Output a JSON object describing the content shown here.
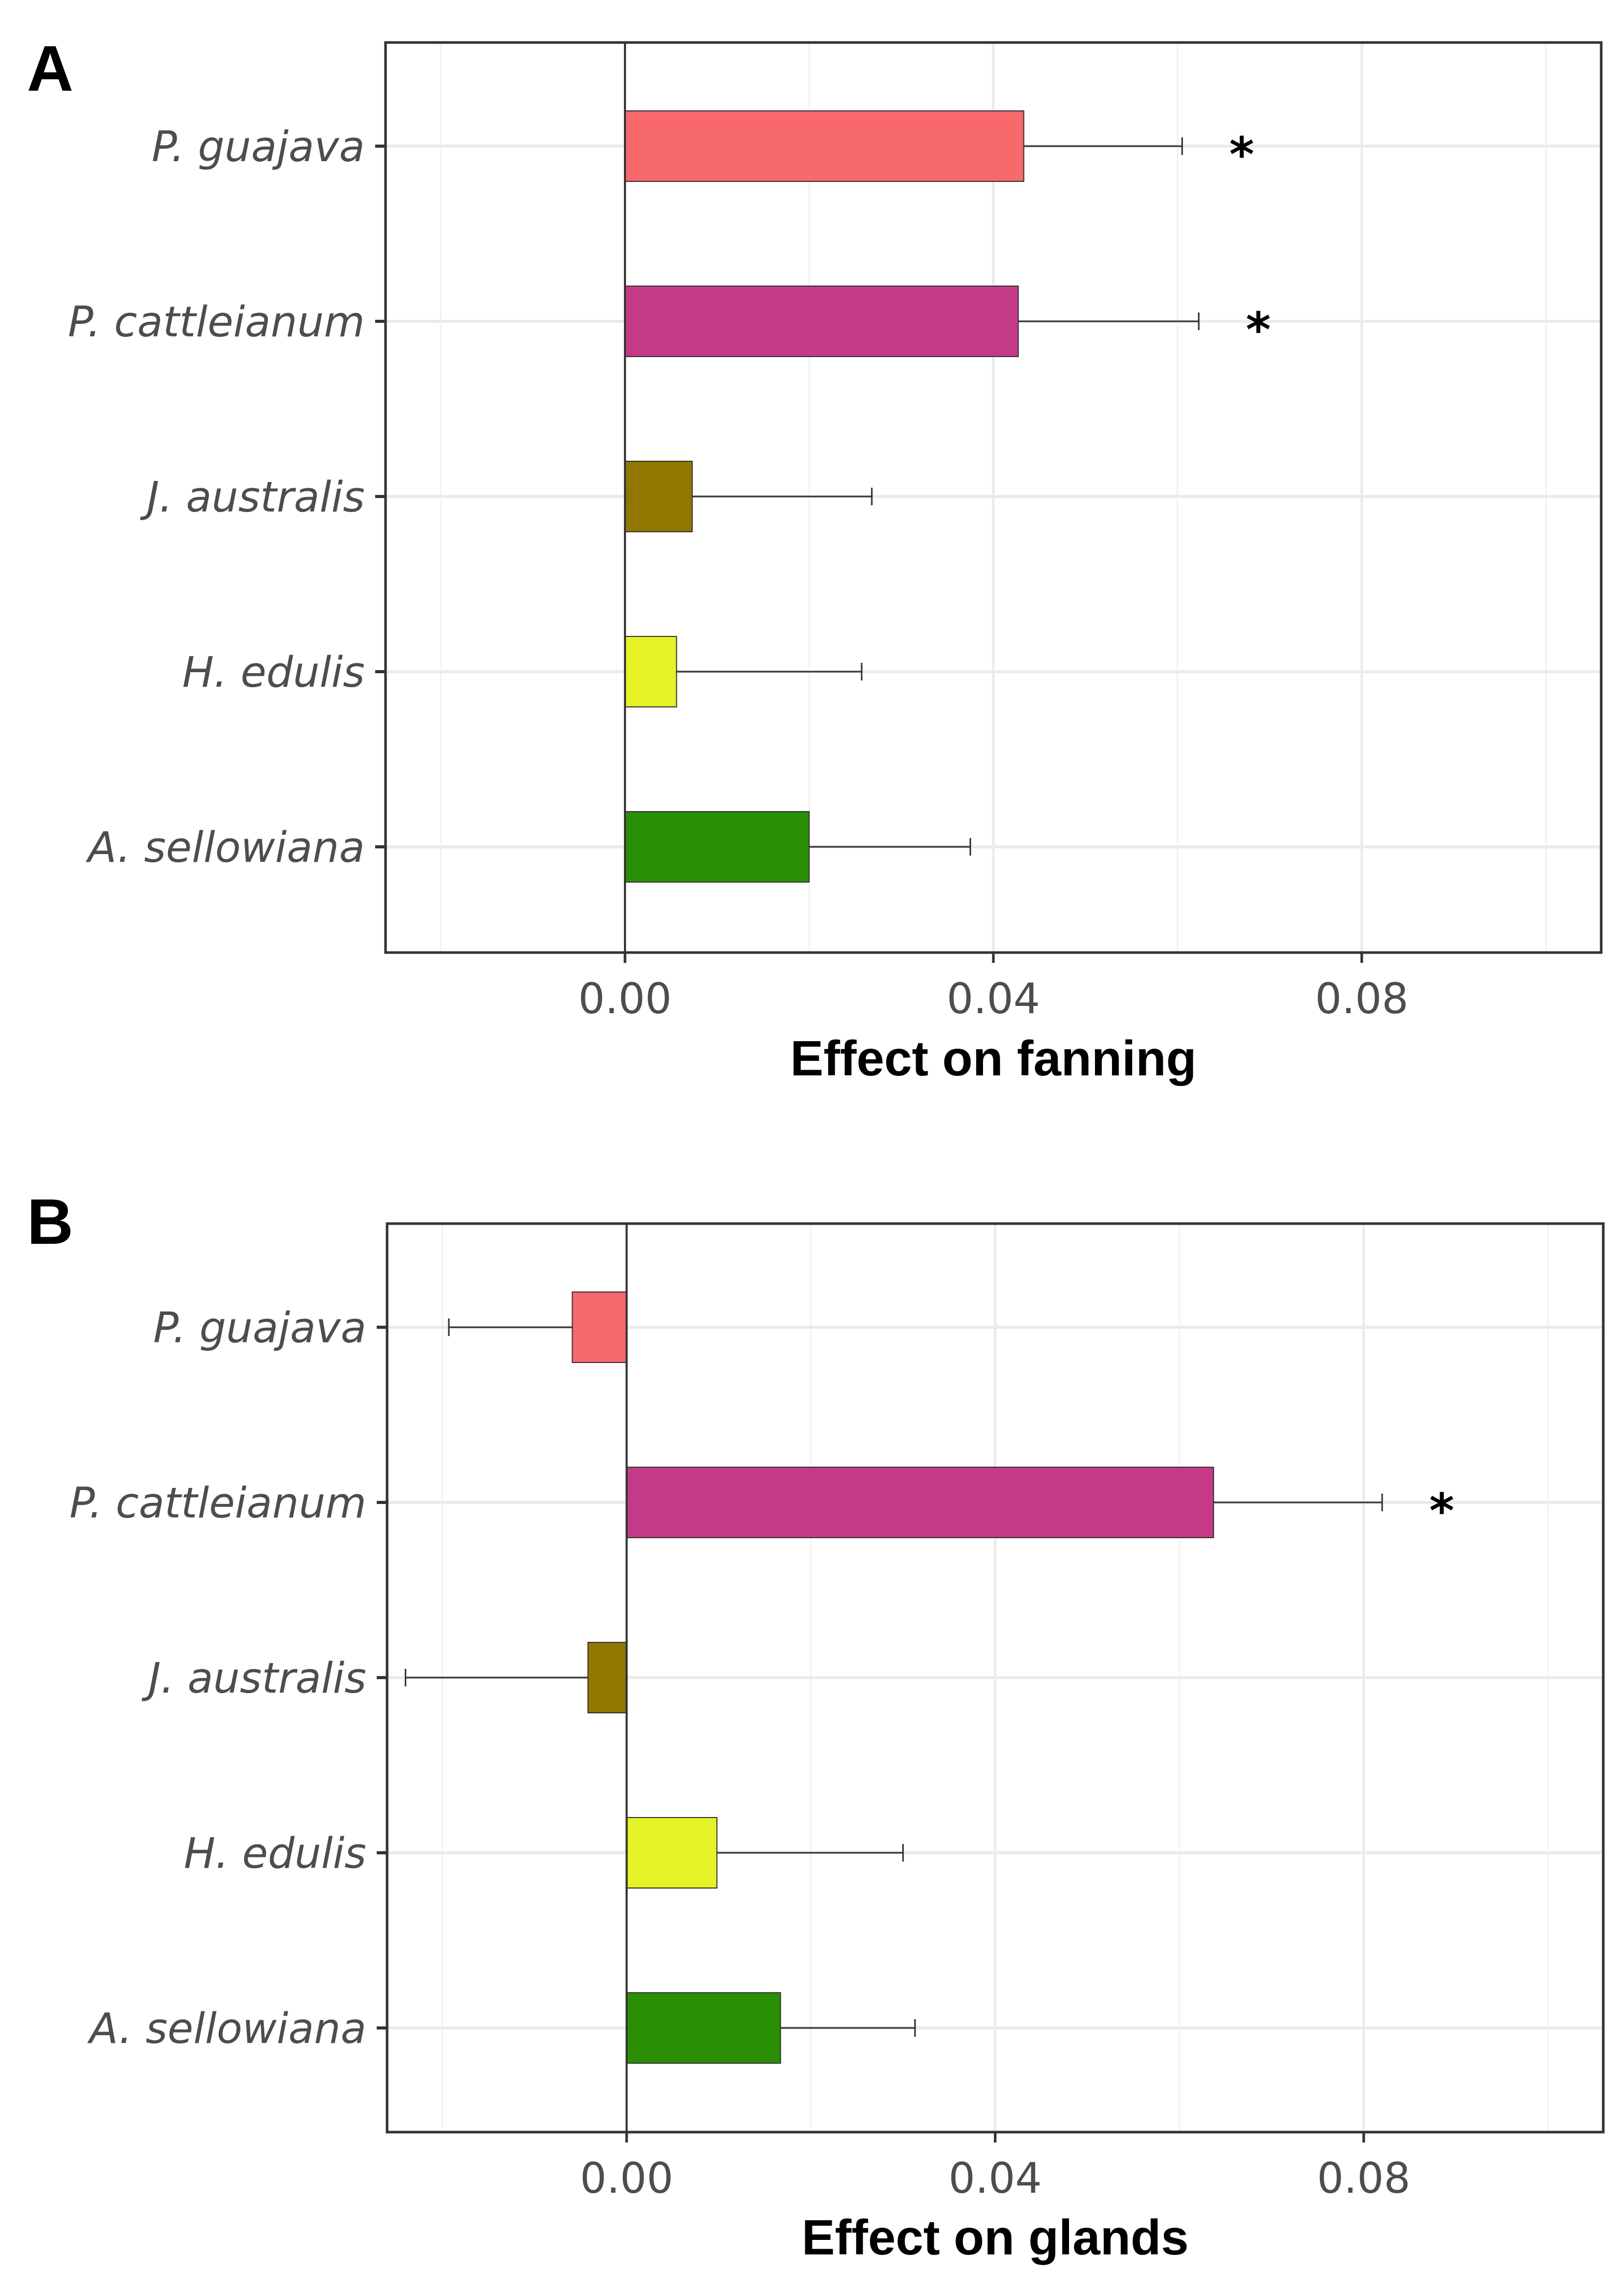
{
  "chart_data": [
    {
      "panel": "A",
      "type": "bar",
      "orientation": "horizontal",
      "xlabel": "Effect on fanning",
      "ylabel": "",
      "xlim": [
        -0.026,
        0.106
      ],
      "x_ticks": [
        0.0,
        0.04,
        0.08
      ],
      "x_tick_labels": [
        "0.00",
        "0.04",
        "0.08"
      ],
      "x_minor": [
        -0.02,
        0.02,
        0.06,
        0.1
      ],
      "grid": true,
      "categories": [
        "P. guajava",
        "P. cattleianum",
        "J. australis",
        "H. edulis",
        "A. sellowiana"
      ],
      "values": [
        0.0433,
        0.0427,
        0.0073,
        0.0056,
        0.02
      ],
      "error_upper": [
        0.0605,
        0.0623,
        0.0268,
        0.0257,
        0.0375
      ],
      "significance": [
        "*",
        "*",
        "",
        "",
        ""
      ],
      "colors": [
        "#f8696b",
        "#c53a87",
        "#917600",
        "#e4f227",
        "#2a8f05"
      ]
    },
    {
      "panel": "B",
      "type": "bar",
      "orientation": "horizontal",
      "xlabel": "Effect on glands",
      "ylabel": "",
      "xlim": [
        -0.026,
        0.106
      ],
      "x_ticks": [
        0.0,
        0.04,
        0.08
      ],
      "x_tick_labels": [
        "0.00",
        "0.04",
        "0.08"
      ],
      "x_minor": [
        -0.02,
        0.02,
        0.06,
        0.1
      ],
      "grid": true,
      "categories": [
        "P. guajava",
        "P. cattleianum",
        "J. australis",
        "H. edulis",
        "A. sellowiana"
      ],
      "values": [
        -0.0059,
        0.0637,
        -0.0042,
        0.0098,
        0.0167
      ],
      "error_lower": [
        -0.0193,
        null,
        -0.024,
        null,
        null
      ],
      "error_upper": [
        null,
        0.082,
        null,
        0.03,
        0.0313
      ],
      "significance": [
        "",
        "*",
        "",
        "",
        ""
      ],
      "colors": [
        "#f8696b",
        "#c53a87",
        "#917600",
        "#e4f227",
        "#2a8f05"
      ]
    }
  ]
}
